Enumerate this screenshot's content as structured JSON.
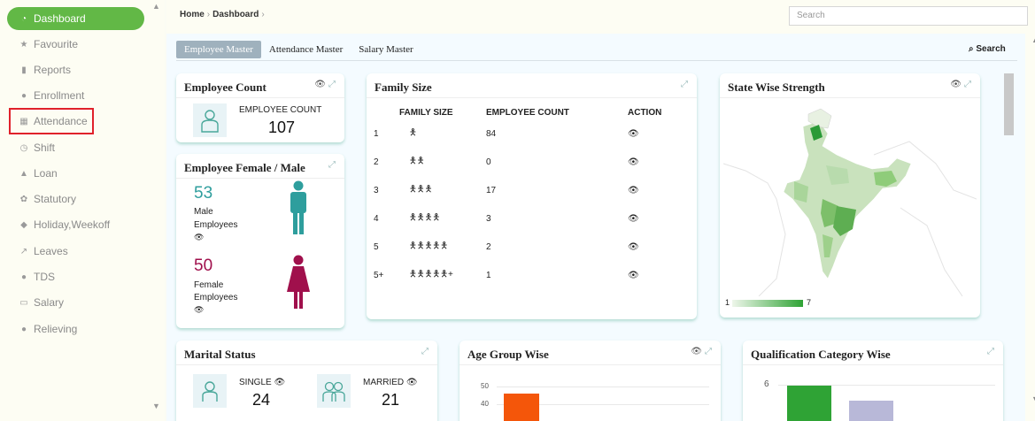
{
  "sidebar": {
    "items": [
      {
        "label": "Dashboard",
        "icon": "dashboard-icon"
      },
      {
        "label": "Favourite",
        "icon": "star-icon"
      },
      {
        "label": "Reports",
        "icon": "file-icon"
      },
      {
        "label": "Enrollment",
        "icon": "user-icon"
      },
      {
        "label": "Attendance",
        "icon": "calendar-icon"
      },
      {
        "label": "Shift",
        "icon": "clock-icon"
      },
      {
        "label": "Loan",
        "icon": "thumbs-up-icon"
      },
      {
        "label": "Statutory",
        "icon": "gear-icon"
      },
      {
        "label": "Holiday,Weekoff",
        "icon": "tag-icon"
      },
      {
        "label": "Leaves",
        "icon": "external-link-icon"
      },
      {
        "label": "TDS",
        "icon": "drop-icon"
      },
      {
        "label": "Salary",
        "icon": "money-icon"
      },
      {
        "label": "Relieving",
        "icon": "user-x-icon"
      }
    ]
  },
  "header": {
    "breadcrumb": [
      "Home",
      "Dashboard"
    ],
    "search_placeholder": "Search"
  },
  "tabs": [
    "Employee Master",
    "Attendance Master",
    "Salary Master"
  ],
  "search_link": "Search",
  "employee_count": {
    "title": "Employee Count",
    "label": "EMPLOYEE COUNT",
    "value": "107"
  },
  "gender": {
    "title": "Employee Female / Male",
    "male_count": "53",
    "male_label_1": "Male",
    "male_label_2": "Employees",
    "female_count": "50",
    "female_label_1": "Female",
    "female_label_2": "Employees"
  },
  "family_size": {
    "title": "Family Size",
    "headers": [
      "FAMILY SIZE",
      "EMPLOYEE COUNT",
      "ACTION"
    ],
    "rows": [
      {
        "size": "1",
        "count": "84"
      },
      {
        "size": "2",
        "count": "0"
      },
      {
        "size": "3",
        "count": "17"
      },
      {
        "size": "4",
        "count": "3"
      },
      {
        "size": "5",
        "count": "2"
      },
      {
        "size": "5+",
        "count": "1"
      }
    ],
    "plus_suffix": "+"
  },
  "state_wise": {
    "title": "State Wise Strength",
    "legend_min": "1",
    "legend_max": "7"
  },
  "marital": {
    "title": "Marital Status",
    "single_label": "SINGLE",
    "single_count": "24",
    "married_label": "MARRIED",
    "married_count": "21"
  },
  "age_group": {
    "title": "Age Group Wise",
    "ticks": [
      "50",
      "40"
    ]
  },
  "qualification": {
    "title": "Qualification Category Wise",
    "ticks": [
      "6"
    ]
  },
  "colors": {
    "accent_green": "#62b846",
    "male": "#2e9e9d",
    "female": "#a0104c",
    "highlight_red": "#e0212b"
  }
}
